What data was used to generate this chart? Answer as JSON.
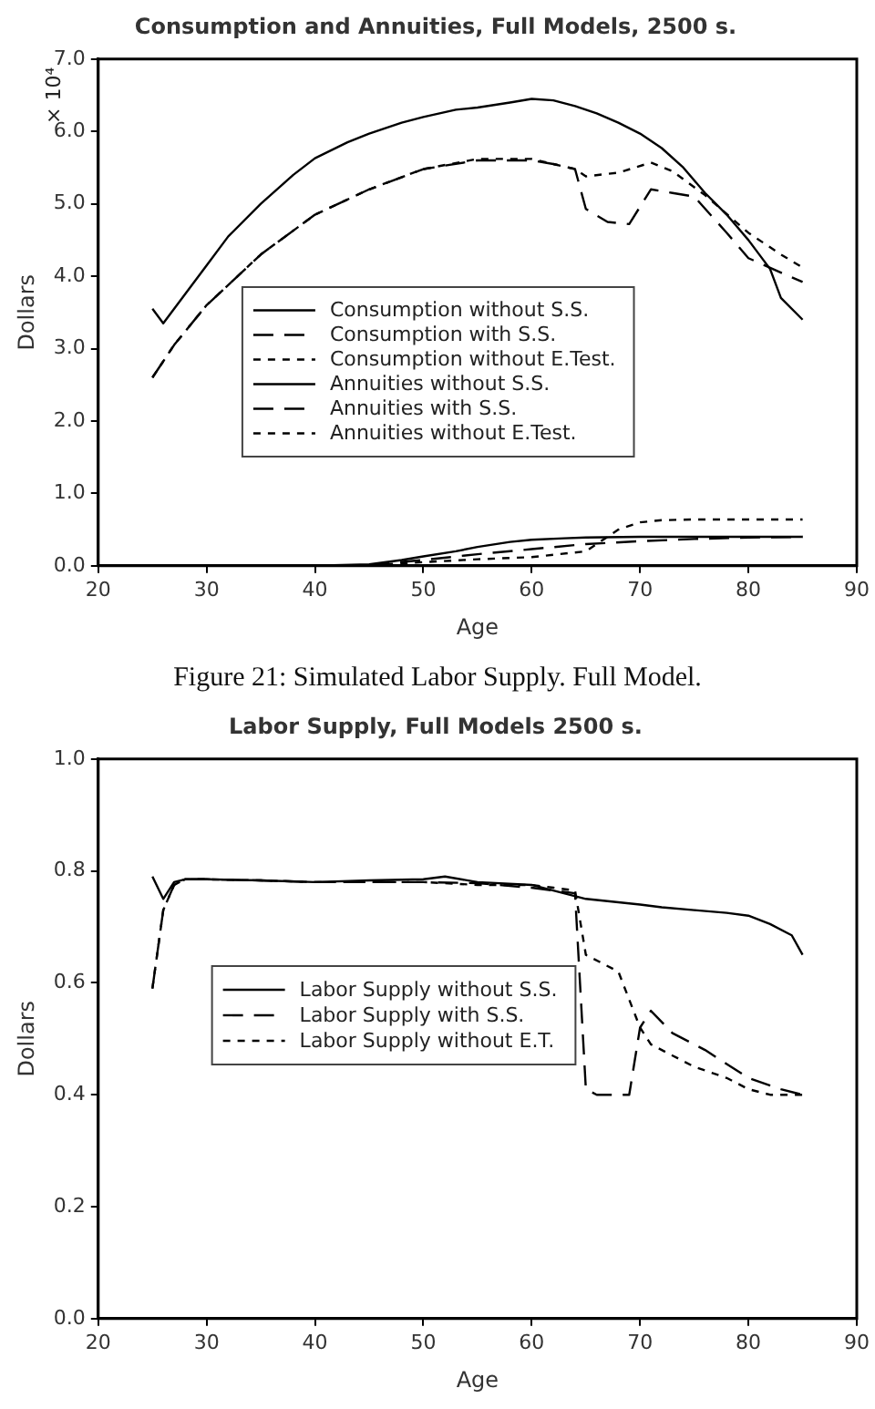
{
  "chart_data": [
    {
      "type": "line",
      "title": "Consumption and Annuities, Full Models, 2500 s.",
      "xlabel": "Age",
      "ylabel": "Dollars",
      "annotations": [
        "× 10⁴"
      ],
      "xlim": [
        20,
        90
      ],
      "xticks": [
        20,
        30,
        40,
        50,
        60,
        70,
        80,
        90
      ],
      "ylim": [
        0,
        7
      ],
      "yticks": [
        {
          "value": 0,
          "label": "0.0"
        },
        {
          "value": 1,
          "label": "1.0"
        },
        {
          "value": 2,
          "label": "2.0"
        },
        {
          "value": 3,
          "label": "3.0"
        },
        {
          "value": 4,
          "label": "4.0"
        },
        {
          "value": 5,
          "label": "5.0"
        },
        {
          "value": 6,
          "label": "6.0"
        },
        {
          "value": 7,
          "label": "7.0"
        }
      ],
      "grid": false,
      "legend": "center",
      "marker": "none",
      "series": [
        {
          "name": "Consumption without S.S.",
          "color": "#000000",
          "line_style": "solid",
          "x": [
            25,
            26,
            28,
            30,
            32,
            35,
            38,
            40,
            43,
            45,
            48,
            50,
            53,
            55,
            58,
            60,
            62,
            64,
            66,
            68,
            70,
            72,
            74,
            76,
            78,
            80,
            82,
            83,
            85
          ],
          "values": [
            3.55,
            3.35,
            3.75,
            4.15,
            4.55,
            5.0,
            5.4,
            5.63,
            5.85,
            5.97,
            6.12,
            6.2,
            6.3,
            6.33,
            6.4,
            6.45,
            6.43,
            6.35,
            6.25,
            6.12,
            5.97,
            5.77,
            5.5,
            5.15,
            4.85,
            4.5,
            4.1,
            3.7,
            3.4
          ]
        },
        {
          "name": "Consumption with S.S.",
          "color": "#000000",
          "line_style": "dashed",
          "x": [
            25,
            27,
            30,
            35,
            40,
            45,
            50,
            55,
            60,
            62,
            64,
            65,
            67,
            69,
            71,
            73,
            75,
            78,
            80,
            83,
            85
          ],
          "values": [
            2.6,
            3.05,
            3.6,
            4.3,
            4.85,
            5.2,
            5.48,
            5.6,
            5.6,
            5.55,
            5.48,
            4.93,
            4.75,
            4.72,
            5.2,
            5.15,
            5.1,
            4.6,
            4.25,
            4.05,
            3.92
          ]
        },
        {
          "name": "Consumption without E.Test.",
          "color": "#000000",
          "line_style": "dotted",
          "x": [
            25,
            27,
            30,
            35,
            40,
            45,
            50,
            55,
            60,
            62,
            64,
            65,
            68,
            71,
            73,
            76,
            80,
            83,
            85
          ],
          "values": [
            2.6,
            3.05,
            3.6,
            4.3,
            4.85,
            5.2,
            5.48,
            5.62,
            5.62,
            5.55,
            5.48,
            5.38,
            5.43,
            5.57,
            5.45,
            5.12,
            4.6,
            4.3,
            4.12
          ]
        },
        {
          "name": "Annuities without S.S.",
          "color": "#000000",
          "line_style": "solid",
          "x": [
            25,
            40,
            45,
            48,
            50,
            53,
            55,
            58,
            60,
            63,
            65,
            70,
            75,
            80,
            85
          ],
          "values": [
            0,
            0,
            0.02,
            0.08,
            0.13,
            0.2,
            0.26,
            0.33,
            0.36,
            0.38,
            0.39,
            0.4,
            0.4,
            0.4,
            0.4
          ]
        },
        {
          "name": "Annuities with S.S.",
          "color": "#000000",
          "line_style": "dashed",
          "x": [
            25,
            40,
            45,
            50,
            55,
            60,
            65,
            70,
            75,
            80,
            85
          ],
          "values": [
            0,
            0,
            0.01,
            0.08,
            0.16,
            0.23,
            0.3,
            0.34,
            0.37,
            0.39,
            0.4
          ]
        },
        {
          "name": "Annuities without E.Test.",
          "color": "#000000",
          "line_style": "dotted",
          "x": [
            25,
            40,
            45,
            50,
            55,
            60,
            65,
            66,
            68,
            70,
            72,
            75,
            80,
            85
          ],
          "values": [
            0,
            0,
            0.01,
            0.05,
            0.09,
            0.12,
            0.2,
            0.3,
            0.5,
            0.6,
            0.63,
            0.64,
            0.64,
            0.64
          ]
        }
      ]
    },
    {
      "type": "line",
      "title": "Labor Supply, Full Models 2500 s.",
      "xlabel": "Age",
      "ylabel": "Dollars",
      "annotations": [
        "Figure 21: Simulated Labor Supply. Full Model."
      ],
      "xlim": [
        20,
        90
      ],
      "xticks": [
        20,
        30,
        40,
        50,
        60,
        70,
        80,
        90
      ],
      "ylim": [
        0,
        1
      ],
      "yticks": [
        {
          "value": 0,
          "label": "0.0"
        },
        {
          "value": 0.2,
          "label": "0.2"
        },
        {
          "value": 0.4,
          "label": "0.4"
        },
        {
          "value": 0.6,
          "label": "0.6"
        },
        {
          "value": 0.8,
          "label": "0.8"
        },
        {
          "value": 1,
          "label": "1.0"
        }
      ],
      "grid": false,
      "legend": "center",
      "marker": "none",
      "series": [
        {
          "name": "Labor Supply without S.S.",
          "color": "#000000",
          "line_style": "solid",
          "x": [
            25,
            26,
            27,
            28,
            30,
            35,
            40,
            45,
            50,
            52,
            55,
            60,
            62,
            65,
            70,
            72,
            75,
            78,
            80,
            82,
            84,
            85
          ],
          "values": [
            0.79,
            0.75,
            0.78,
            0.785,
            0.785,
            0.783,
            0.78,
            0.783,
            0.785,
            0.79,
            0.78,
            0.775,
            0.765,
            0.75,
            0.74,
            0.735,
            0.73,
            0.725,
            0.72,
            0.705,
            0.685,
            0.65
          ]
        },
        {
          "name": "Labor Supply with S.S.",
          "color": "#000000",
          "line_style": "dashed",
          "x": [
            25,
            26,
            27,
            28,
            30,
            35,
            40,
            45,
            50,
            55,
            60,
            62,
            64,
            65,
            66,
            68,
            69,
            70,
            71,
            73,
            76,
            80,
            83,
            85
          ],
          "values": [
            0.59,
            0.73,
            0.775,
            0.785,
            0.785,
            0.783,
            0.78,
            0.78,
            0.78,
            0.778,
            0.77,
            0.765,
            0.76,
            0.41,
            0.4,
            0.4,
            0.4,
            0.52,
            0.55,
            0.51,
            0.48,
            0.43,
            0.41,
            0.4
          ]
        },
        {
          "name": "Labor Supply without E.T.",
          "color": "#000000",
          "line_style": "dotted",
          "x": [
            25,
            26,
            27,
            28,
            30,
            35,
            40,
            45,
            50,
            55,
            60,
            62,
            64,
            65,
            67,
            68,
            69,
            70,
            71,
            73,
            75,
            78,
            80,
            82,
            85
          ],
          "values": [
            0.59,
            0.73,
            0.775,
            0.785,
            0.785,
            0.783,
            0.78,
            0.78,
            0.78,
            0.775,
            0.775,
            0.77,
            0.765,
            0.65,
            0.63,
            0.62,
            0.57,
            0.52,
            0.49,
            0.47,
            0.45,
            0.43,
            0.41,
            0.4,
            0.4
          ]
        }
      ]
    }
  ]
}
